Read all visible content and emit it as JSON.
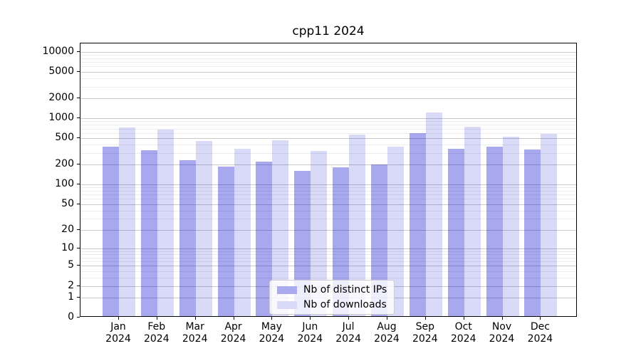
{
  "title": "cpp11 2024",
  "chart_data": {
    "type": "bar",
    "title": "cpp11 2024",
    "categories": [
      "Jan",
      "Feb",
      "Mar",
      "Apr",
      "May",
      "Jun",
      "Jul",
      "Aug",
      "Sep",
      "Oct",
      "Nov",
      "Dec"
    ],
    "year_label": "2024",
    "series": [
      {
        "name": "Nb of distinct IPs",
        "color": "rgba(0,0,208,0.34)",
        "legend_color": "#aaaaf0",
        "values": [
          352,
          313,
          222,
          177,
          209,
          154,
          173,
          192,
          563,
          329,
          352,
          323
        ]
      },
      {
        "name": "Nb of downloads",
        "color": "rgba(0,0,208,0.15)",
        "legend_color": "#d9d9f8",
        "values": [
          691,
          638,
          432,
          332,
          446,
          303,
          540,
          352,
          1153,
          709,
          505,
          557
        ]
      }
    ],
    "y_scale": "log10(1+x)",
    "ylim": [
      0,
      13360
    ],
    "yticks": [
      0,
      1,
      2,
      5,
      10,
      20,
      50,
      100,
      200,
      500,
      1000,
      2000,
      5000,
      10000
    ],
    "xlabel": "",
    "ylabel": "",
    "grid": true,
    "legend_position": "lower center"
  },
  "colors": {
    "major_gridline": "#c9c9c9",
    "minor_gridline": "#ececec",
    "axis": "#000000",
    "background": "#ffffff",
    "bar_dark": "#aaaaf0",
    "bar_light": "#d9d9f8"
  }
}
